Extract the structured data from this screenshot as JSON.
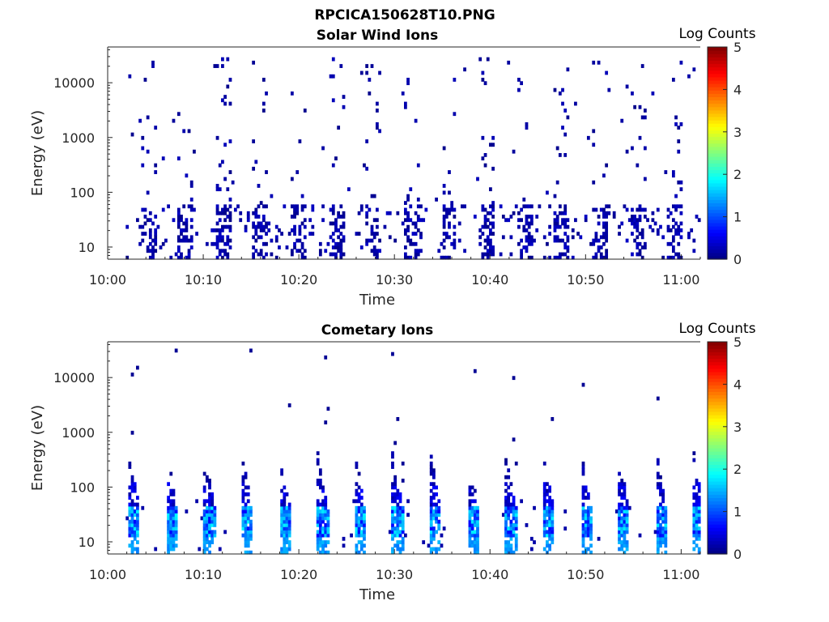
{
  "figure": {
    "title": "RPCICA150628T10.PNG"
  },
  "chart_data": [
    {
      "type": "heatmap",
      "title": "Solar Wind Ions",
      "xlabel": "Time",
      "ylabel": "Energy (eV)",
      "y_scale": "log",
      "ylim": [
        6,
        45000
      ],
      "xlim": [
        "10:00",
        "11:02"
      ],
      "x_ticks": [
        "10:00",
        "10:10",
        "10:20",
        "10:30",
        "10:40",
        "10:50",
        "11:00"
      ],
      "y_ticks": [
        "10",
        "100",
        "1000",
        "10000"
      ],
      "colorbar": {
        "title": "Log Counts",
        "range": [
          0,
          5
        ],
        "ticks": [
          "0",
          "1",
          "2",
          "3",
          "4",
          "5"
        ],
        "colormap": "jet"
      },
      "grid": false,
      "sweep_period_min": 3.94,
      "sweep_first_min": 3.4,
      "pattern": "sparse isolated counts (log counts ~0) scattered 10 eV - 30 keV, denser low-energy streaks below 60 eV"
    },
    {
      "type": "heatmap",
      "title": "Cometary Ions",
      "xlabel": "Time",
      "ylabel": "Energy (eV)",
      "y_scale": "log",
      "ylim": [
        6,
        45000
      ],
      "xlim": [
        "10:00",
        "11:02"
      ],
      "x_ticks": [
        "10:00",
        "10:10",
        "10:20",
        "10:30",
        "10:40",
        "10:50",
        "11:00"
      ],
      "y_ticks": [
        "10",
        "100",
        "1000",
        "10000"
      ],
      "colorbar": {
        "title": "Log Counts",
        "range": [
          0,
          5
        ],
        "ticks": [
          "0",
          "1",
          "2",
          "3",
          "4",
          "5"
        ],
        "colormap": "jet"
      },
      "grid": false,
      "sweep_period_min": 3.94,
      "sweep_first_min": 2.2,
      "pattern": "periodic energy sweeps, counts up to log ~1.8 at 10-40 eV, lower counts extending to ~500 eV"
    }
  ]
}
